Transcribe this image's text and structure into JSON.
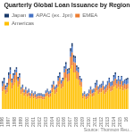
{
  "chart_data": {
    "type": "bar",
    "title": "Quarterly Global Loan Issuance by Region",
    "annotations": [
      "Source: Thomson Reu..."
    ],
    "stacked": true,
    "legend": "upper left",
    "grid": false,
    "tick_labels": "x",
    "ylim": [
      0,
      85
    ],
    "categories": [
      "1996",
      null,
      null,
      null,
      "1997",
      null,
      null,
      null,
      "1998",
      null,
      null,
      null,
      "1999",
      null,
      null,
      null,
      "2000",
      null,
      null,
      null,
      "2001",
      null,
      null,
      null,
      "2002",
      null,
      null,
      null,
      "2003",
      null,
      null,
      null,
      "2004",
      null,
      null,
      null,
      "2005",
      null,
      null,
      null,
      "2006",
      null,
      null,
      null,
      "2007",
      null,
      null,
      null,
      "2008",
      null,
      null,
      null,
      "2009",
      null,
      null,
      null,
      "2010",
      null,
      null,
      null,
      "2011",
      null,
      null,
      null,
      "2012",
      null,
      null,
      null,
      "2013",
      null,
      null,
      null,
      "2014",
      null,
      null,
      null,
      "2015",
      null,
      null,
      null,
      "16",
      null
    ],
    "series": [
      {
        "name": "Americas",
        "color": "#ffc000",
        "values": [
          20,
          22,
          17,
          19,
          27,
          31,
          23,
          27,
          30,
          33,
          25,
          28,
          17,
          19,
          15,
          17,
          14,
          15,
          12,
          14,
          12,
          13,
          11,
          12,
          12,
          12,
          11,
          11,
          14,
          15,
          13,
          14,
          19,
          22,
          17,
          19,
          25,
          28,
          23,
          25,
          33,
          36,
          31,
          32,
          46,
          50,
          42,
          42,
          35,
          33,
          27,
          25,
          12,
          14,
          11,
          12,
          14,
          17,
          14,
          15,
          19,
          21,
          17,
          19,
          19,
          21,
          17,
          19,
          21,
          23,
          20,
          21,
          25,
          27,
          23,
          25,
          22,
          25,
          21,
          23,
          22,
          23
        ]
      },
      {
        "name": "EMEA",
        "color": "#ed7d31",
        "values": [
          6,
          7,
          5,
          6,
          8,
          9,
          7,
          8,
          9,
          9,
          7,
          8,
          5,
          5,
          4,
          5,
          4,
          4,
          3,
          4,
          3,
          4,
          3,
          3,
          3,
          3,
          3,
          3,
          4,
          4,
          4,
          4,
          5,
          6,
          5,
          5,
          7,
          8,
          6,
          7,
          9,
          10,
          9,
          9,
          14,
          15,
          12,
          11,
          9,
          9,
          7,
          6,
          3,
          3,
          3,
          3,
          4,
          5,
          4,
          4,
          5,
          6,
          5,
          5,
          5,
          6,
          5,
          5,
          6,
          7,
          6,
          6,
          7,
          8,
          6,
          7,
          6,
          7,
          6,
          6,
          6,
          6
        ]
      },
      {
        "name": "APAC (ex. Jpn)",
        "color": "#4472c4",
        "values": [
          3,
          4,
          3,
          3,
          4,
          5,
          3,
          4,
          4,
          4,
          3,
          3,
          2,
          3,
          2,
          2,
          2,
          3,
          2,
          2,
          2,
          2,
          2,
          2,
          2,
          2,
          2,
          2,
          2,
          3,
          2,
          2,
          3,
          3,
          3,
          3,
          4,
          4,
          3,
          3,
          5,
          5,
          4,
          4,
          6,
          7,
          5,
          5,
          4,
          4,
          3,
          3,
          2,
          2,
          2,
          2,
          3,
          3,
          3,
          3,
          4,
          4,
          3,
          3,
          4,
          4,
          3,
          3,
          4,
          5,
          4,
          4,
          5,
          5,
          4,
          5,
          5,
          5,
          4,
          4,
          5,
          5
        ]
      },
      {
        "name": "Japan",
        "color": "#1a3a6b",
        "values": [
          3,
          3,
          2,
          2,
          3,
          3,
          2,
          2,
          2,
          2,
          2,
          2,
          1,
          1,
          1,
          1,
          1,
          1,
          1,
          1,
          1,
          1,
          1,
          1,
          1,
          1,
          1,
          1,
          1,
          1,
          1,
          1,
          1,
          1,
          1,
          1,
          2,
          2,
          1,
          1,
          2,
          3,
          2,
          2,
          4,
          4,
          3,
          3,
          2,
          2,
          1,
          1,
          1,
          1,
          1,
          1,
          1,
          1,
          1,
          1,
          2,
          2,
          1,
          1,
          1,
          1,
          1,
          1,
          1,
          1,
          1,
          1,
          2,
          2,
          1,
          1,
          1,
          1,
          1,
          1,
          2,
          2
        ]
      }
    ]
  }
}
